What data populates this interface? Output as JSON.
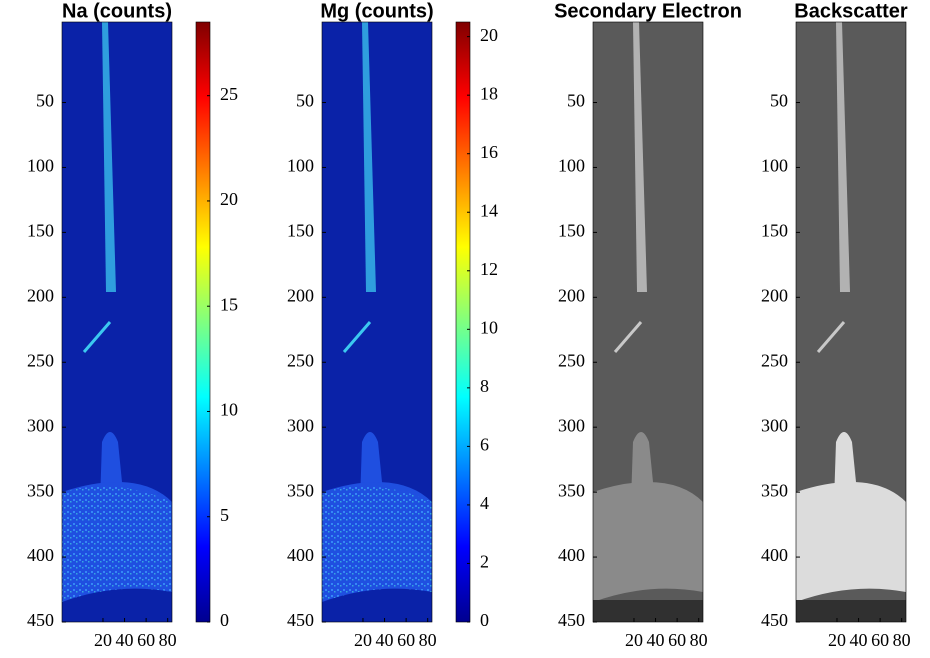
{
  "chart_data": [
    {
      "type": "heatmap",
      "title": "Na (counts)",
      "colormap": "jet",
      "xlim": [
        -18,
        84
      ],
      "ylim": [
        -12,
        450
      ],
      "xticks": [
        20,
        40,
        60,
        80
      ],
      "yticks": [
        50,
        100,
        150,
        200,
        250,
        300,
        350,
        400,
        450
      ],
      "colorbar": {
        "clim": [
          0,
          28.5
        ],
        "ticks": [
          0,
          5,
          10,
          15,
          20,
          25
        ]
      }
    },
    {
      "type": "heatmap",
      "title": "Mg (counts)",
      "colormap": "jet",
      "xlim": [
        -18,
        84
      ],
      "ylim": [
        -12,
        450
      ],
      "xticks": [
        20,
        40,
        60,
        80
      ],
      "yticks": [
        50,
        100,
        150,
        200,
        250,
        300,
        350,
        400,
        450
      ],
      "colorbar": {
        "clim": [
          0,
          20.5
        ],
        "ticks": [
          0,
          2,
          4,
          6,
          8,
          10,
          12,
          14,
          16,
          18,
          20
        ]
      }
    },
    {
      "type": "image",
      "title": "Secondary Electron",
      "colormap": "gray",
      "xlim": [
        -18,
        84
      ],
      "ylim": [
        -12,
        450
      ],
      "xticks": [
        20,
        40,
        60,
        80
      ],
      "yticks": [
        50,
        100,
        150,
        200,
        250,
        300,
        350,
        400,
        450
      ]
    },
    {
      "type": "image",
      "title": "Backscatter",
      "colormap": "gray",
      "xlim": [
        -18,
        84
      ],
      "ylim": [
        -12,
        450
      ],
      "xticks": [
        20,
        40,
        60,
        80
      ],
      "yticks": [
        50,
        100,
        150,
        200,
        250,
        300,
        350,
        400,
        450
      ]
    }
  ]
}
